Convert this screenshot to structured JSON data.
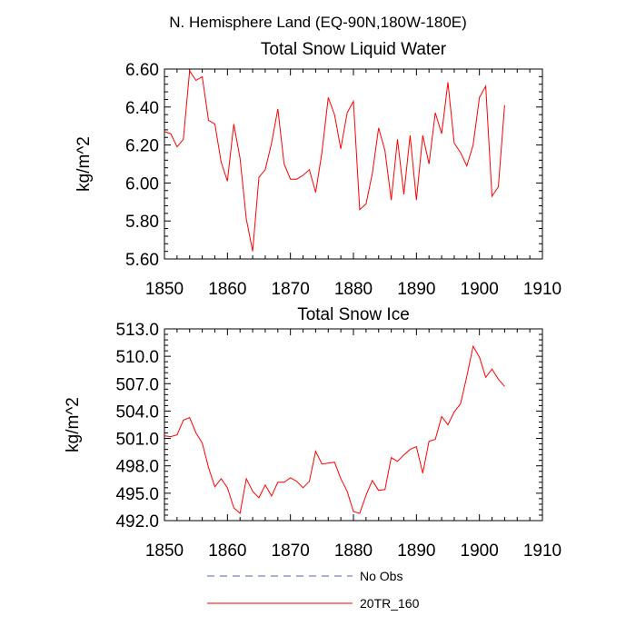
{
  "figure_title": "N. Hemisphere Land (EQ-90N,180W-180E)",
  "legend": [
    {
      "label": "No Obs",
      "color": "#4f5fd0",
      "dash": "dashed"
    },
    {
      "label": "20TR_160",
      "color": "#ff0000",
      "dash": "solid"
    }
  ],
  "chart_data": [
    {
      "type": "line",
      "title": "Total Snow Liquid Water",
      "xlabel": "",
      "ylabel": "kg/m^2",
      "xlim": [
        1850,
        1910
      ],
      "ylim": [
        5.6,
        6.6
      ],
      "x_ticks": [
        1850,
        1860,
        1870,
        1880,
        1890,
        1900,
        1910
      ],
      "y_ticks": [
        "5.60",
        "5.80",
        "6.00",
        "6.20",
        "6.40",
        "6.60"
      ],
      "series": [
        {
          "name": "20TR_160",
          "color": "#ff0000",
          "x": [
            1850,
            1851,
            1852,
            1853,
            1854,
            1855,
            1856,
            1857,
            1858,
            1859,
            1860,
            1861,
            1862,
            1863,
            1864,
            1865,
            1866,
            1867,
            1868,
            1869,
            1870,
            1871,
            1872,
            1873,
            1874,
            1875,
            1876,
            1877,
            1878,
            1879,
            1880,
            1881,
            1882,
            1883,
            1884,
            1885,
            1886,
            1887,
            1888,
            1889,
            1890,
            1891,
            1892,
            1893,
            1894,
            1895,
            1896,
            1897,
            1898,
            1899,
            1900,
            1901,
            1902,
            1903,
            1904
          ],
          "values": [
            6.27,
            6.26,
            6.19,
            6.23,
            6.59,
            6.54,
            6.56,
            6.33,
            6.31,
            6.11,
            6.01,
            6.31,
            6.13,
            5.81,
            5.64,
            6.03,
            6.07,
            6.21,
            6.39,
            6.1,
            6.02,
            6.02,
            6.04,
            6.07,
            5.95,
            6.16,
            6.45,
            6.36,
            6.18,
            6.37,
            6.43,
            5.86,
            5.89,
            6.05,
            6.29,
            6.17,
            5.91,
            6.23,
            5.94,
            6.25,
            5.91,
            6.25,
            6.1,
            6.37,
            6.26,
            6.53,
            6.21,
            6.16,
            6.09,
            6.2,
            6.45,
            6.51,
            5.93,
            5.98,
            6.41
          ]
        }
      ]
    },
    {
      "type": "line",
      "title": "Total Snow Ice",
      "xlabel": "",
      "ylabel": "kg/m^2",
      "xlim": [
        1850,
        1910
      ],
      "ylim": [
        492,
        513
      ],
      "x_ticks": [
        1850,
        1860,
        1870,
        1880,
        1890,
        1900,
        1910
      ],
      "y_ticks": [
        "492.0",
        "495.0",
        "498.0",
        "501.0",
        "504.0",
        "507.0",
        "510.0",
        "513.0"
      ],
      "series": [
        {
          "name": "20TR_160",
          "color": "#ff0000",
          "x": [
            1850,
            1851,
            1852,
            1853,
            1854,
            1855,
            1856,
            1857,
            1858,
            1859,
            1860,
            1861,
            1862,
            1863,
            1864,
            1865,
            1866,
            1867,
            1868,
            1869,
            1870,
            1871,
            1872,
            1873,
            1874,
            1875,
            1876,
            1877,
            1878,
            1879,
            1880,
            1881,
            1882,
            1883,
            1884,
            1885,
            1886,
            1887,
            1888,
            1889,
            1890,
            1891,
            1892,
            1893,
            1894,
            1895,
            1896,
            1897,
            1898,
            1899,
            1900,
            1901,
            1902,
            1903,
            1904
          ],
          "values": [
            501.3,
            501.2,
            501.4,
            503.0,
            503.3,
            501.6,
            500.5,
            497.8,
            495.7,
            496.6,
            495.6,
            493.4,
            492.8,
            496.6,
            495.2,
            494.5,
            495.9,
            494.7,
            496.2,
            496.2,
            496.7,
            496.3,
            495.6,
            496.3,
            499.6,
            498.2,
            498.3,
            498.4,
            496.6,
            495.2,
            493.0,
            492.8,
            494.8,
            496.4,
            495.3,
            495.4,
            498.9,
            498.5,
            499.2,
            499.8,
            500.1,
            497.2,
            500.7,
            500.9,
            503.4,
            502.5,
            503.9,
            504.8,
            507.8,
            511.1,
            509.9,
            507.7,
            508.6,
            507.5,
            506.7
          ]
        }
      ]
    }
  ]
}
